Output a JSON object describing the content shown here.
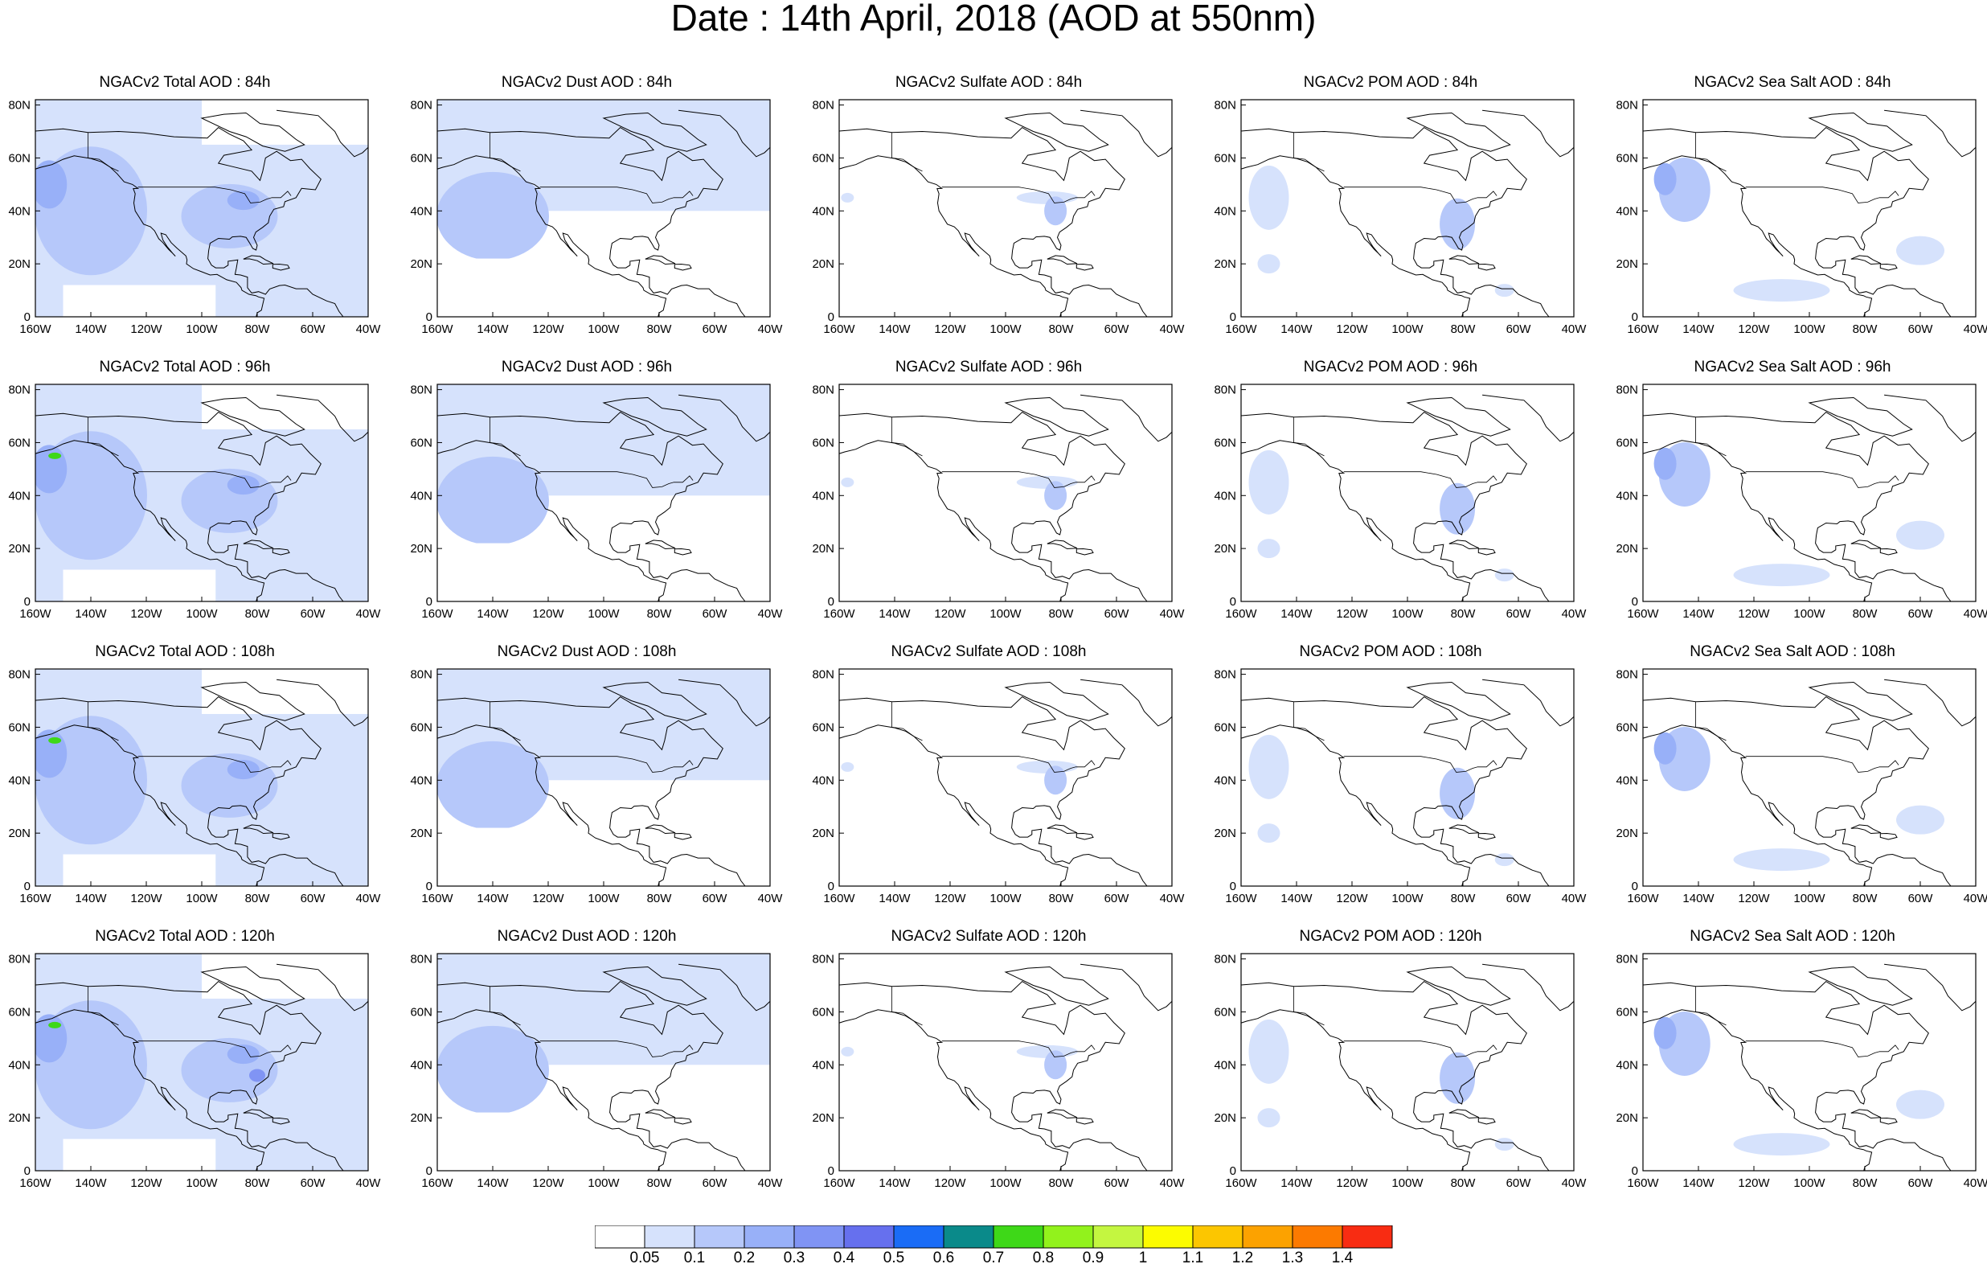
{
  "title": "Date : 14th April, 2018 (AOD at 550nm)",
  "axes": {
    "lat_ticks": [
      "0",
      "20N",
      "40N",
      "60N",
      "80N"
    ],
    "lon_ticks": [
      "160W",
      "140W",
      "120W",
      "100W",
      "80W",
      "60W",
      "40W"
    ]
  },
  "columns": [
    "Total",
    "Dust",
    "Sulfate",
    "POM",
    "Sea Salt"
  ],
  "panel_titles": [
    [
      "NGACv2 Total AOD : 84h",
      "NGACv2 Dust AOD : 84h",
      "NGACv2 Sulfate AOD : 84h",
      "NGACv2 POM AOD : 84h",
      "NGACv2 Sea Salt AOD : 84h"
    ],
    [
      "NGACv2 Total AOD : 96h",
      "NGACv2 Dust AOD : 96h",
      "NGACv2 Sulfate AOD : 96h",
      "NGACv2 POM AOD : 96h",
      "NGACv2 Sea Salt AOD : 96h"
    ],
    [
      "NGACv2 Total AOD : 108h",
      "NGACv2 Dust AOD : 108h",
      "NGACv2 Sulfate AOD : 108h",
      "NGACv2 POM AOD : 108h",
      "NGACv2 Sea Salt AOD : 108h"
    ],
    [
      "NGACv2 Total AOD : 120h",
      "NGACv2 Dust AOD : 120h",
      "NGACv2 Sulfate AOD : 120h",
      "NGACv2 POM AOD : 120h",
      "NGACv2 Sea Salt  AOD : 120h"
    ]
  ],
  "colorbar": {
    "labels": [
      "0.05",
      "0.1",
      "0.2",
      "0.3",
      "0.4",
      "0.5",
      "0.6",
      "0.7",
      "0.8",
      "0.9",
      "1",
      "1.1",
      "1.2",
      "1.3",
      "1.4"
    ],
    "colors": [
      "#ffffff",
      "#d6e2fc",
      "#b6c8fa",
      "#98b0f8",
      "#8094f4",
      "#6670ee",
      "#1a6cf6",
      "#0a8a8a",
      "#3ed818",
      "#92f21c",
      "#c4f640",
      "#fcfc00",
      "#fcc600",
      "#fca200",
      "#fc7a00",
      "#f82c12"
    ]
  },
  "colors": {
    "ocean_light": "#d6e2fc",
    "level_0_1": "#b6c8fa",
    "level_0_2": "#98b0f8",
    "level_0_3": "#8094f4",
    "green_hotspot": "#3ed818"
  }
}
